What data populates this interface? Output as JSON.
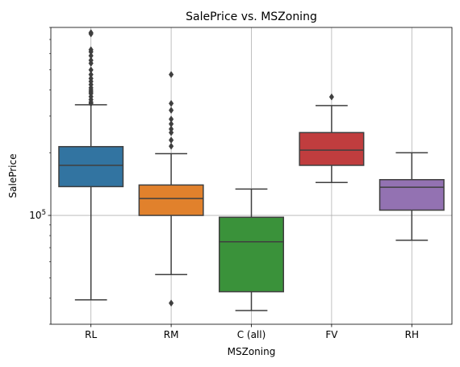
{
  "chart_data": {
    "type": "box",
    "title": "SalePrice vs. MSZoning",
    "xlabel": "MSZoning",
    "ylabel": "SalePrice",
    "yscale": "log",
    "ylim": [
      30000,
      800000
    ],
    "grid": true,
    "categories": [
      "RL",
      "RM",
      "C (all)",
      "FV",
      "RH"
    ],
    "boxes": [
      {
        "category": "RL",
        "color": "#3274a1",
        "whisker_low": 39300,
        "q1": 137500,
        "median": 174000,
        "q3": 214000,
        "whisker_high": 340000,
        "outliers": [
          345000,
          350000,
          360000,
          372000,
          385000,
          392000,
          400000,
          410000,
          425000,
          440000,
          455000,
          475000,
          500000,
          538000,
          556000,
          585000,
          611000,
          625000,
          745000,
          755000
        ]
      },
      {
        "category": "RM",
        "color": "#e1812c",
        "whisker_low": 52000,
        "q1": 100000,
        "median": 120500,
        "q3": 140000,
        "whisker_high": 198000,
        "outliers": [
          37900,
          215000,
          230000,
          250000,
          260000,
          275000,
          290000,
          320000,
          345000,
          475000
        ]
      },
      {
        "category": "C (all)",
        "color": "#3a923a",
        "whisker_low": 34900,
        "q1": 43000,
        "median": 74700,
        "q3": 98000,
        "whisker_high": 133900,
        "outliers": []
      },
      {
        "category": "FV",
        "color": "#c03d3e",
        "whisker_low": 144000,
        "q1": 174000,
        "median": 205950,
        "q3": 250000,
        "whisker_high": 337000,
        "outliers": [
          370800
        ]
      },
      {
        "category": "RH",
        "color": "#9372b2",
        "whisker_low": 76000,
        "q1": 106000,
        "median": 136500,
        "q3": 148500,
        "whisker_high": 200000,
        "outliers": []
      }
    ],
    "ytick_labels": [
      "10^5"
    ]
  }
}
